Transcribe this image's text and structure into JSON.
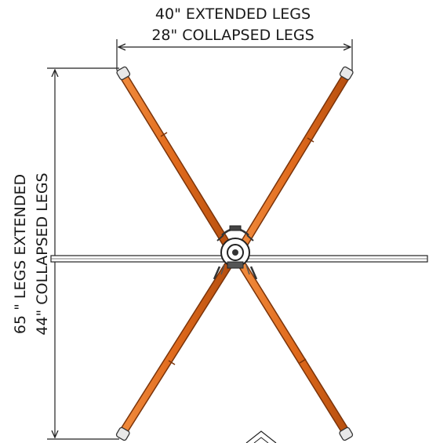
{
  "dimensions": {
    "width_extended": "40\" EXTENDED LEGS",
    "width_collapsed": "28\" COLLAPSED LEGS",
    "height_extended": "65 \" LEGS EXTENDED",
    "height_collapsed": "44\" COLLAPSED LEGS"
  },
  "colors": {
    "leg": "#e06a1c",
    "leg_dark": "#8a3a0a",
    "line": "#222222",
    "hub": "#333333"
  },
  "icons": {
    "leg_cap": "leg-foot-cap-icon",
    "hub": "center-hub-icon"
  }
}
